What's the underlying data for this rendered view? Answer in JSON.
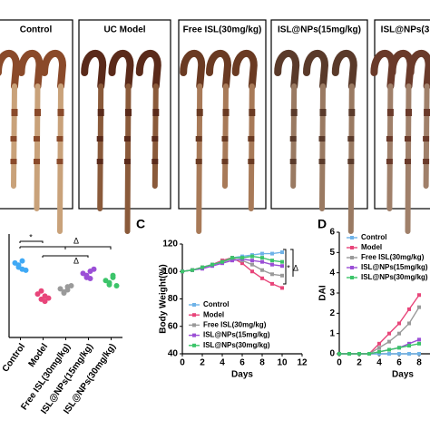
{
  "photo_labels": [
    "Control",
    "UC Model",
    "Free ISL(30mg/kg)",
    "ISL@NPs(15mg/kg)",
    "ISL@NPs(3"
  ],
  "chart_data": [
    {
      "type": "dot",
      "categories": [
        "Control",
        "Model",
        "Free ISL(30mg/kg)",
        "ISL@NPs(15mg/kg)",
        "ISL@NPs(30mg/kg)"
      ],
      "values": [
        [
          72,
          68,
          66,
          70,
          74,
          65
        ],
        [
          42,
          37,
          40,
          45,
          35,
          38
        ],
        [
          47,
          44,
          49,
          43,
          46,
          50
        ],
        [
          62,
          58,
          64,
          60,
          57,
          66
        ],
        [
          55,
          51,
          58,
          53,
          60,
          50
        ]
      ],
      "colors": [
        "#3fa9f5",
        "#e8457a",
        "#9a9a9a",
        "#9b4fd6",
        "#3cc46a"
      ],
      "ylim": [
        0,
        100
      ],
      "annotations": [
        "*",
        "Δ",
        "Δ"
      ]
    },
    {
      "type": "line",
      "panel": "C",
      "ylabel": "Body Weight(%)",
      "xlabel": "Days",
      "x": [
        0,
        1,
        2,
        3,
        4,
        5,
        6,
        7,
        8,
        9,
        10
      ],
      "xlim": [
        0,
        12
      ],
      "xticks": [
        0,
        2,
        4,
        6,
        8,
        10,
        12
      ],
      "ylim": [
        40,
        120
      ],
      "yticks": [
        40,
        60,
        80,
        100,
        120
      ],
      "series": [
        {
          "name": "Control",
          "color": "#6fb3e8",
          "values": [
            100,
            101,
            103,
            105,
            108,
            110,
            111,
            112,
            113,
            113,
            114
          ]
        },
        {
          "name": "Model",
          "color": "#e8457a",
          "values": [
            100,
            101,
            103,
            105,
            108,
            110,
            106,
            100,
            95,
            91,
            88
          ]
        },
        {
          "name": "Free ISL(30mg/kg)",
          "color": "#9a9a9a",
          "values": [
            100,
            101,
            103,
            105,
            107,
            109,
            108,
            105,
            101,
            98,
            97
          ]
        },
        {
          "name": "ISL@NPs(15mg/kg)",
          "color": "#9b4fd6",
          "values": [
            100,
            101,
            102,
            104,
            106,
            108,
            109,
            108,
            107,
            105,
            104
          ]
        },
        {
          "name": "ISL@NPs(30mg/kg)",
          "color": "#3cc46a",
          "values": [
            100,
            101,
            103,
            105,
            107,
            110,
            110,
            111,
            110,
            108,
            107
          ]
        }
      ],
      "annotations": [
        "*",
        "Δ"
      ]
    },
    {
      "type": "line",
      "panel": "D",
      "ylabel": "DAI",
      "xlabel": "Days",
      "x": [
        0,
        1,
        2,
        3,
        4,
        5,
        6,
        7,
        8
      ],
      "xlim": [
        0,
        10
      ],
      "xticks": [
        0,
        2,
        4,
        6,
        8
      ],
      "ylim": [
        0,
        6
      ],
      "yticks": [
        0,
        1,
        2,
        3,
        4,
        5,
        6
      ],
      "series": [
        {
          "name": "Control",
          "color": "#6fb3e8",
          "values": [
            0,
            0,
            0,
            0,
            0,
            0,
            0,
            0,
            0
          ]
        },
        {
          "name": "Model",
          "color": "#e8457a",
          "values": [
            0,
            0,
            0,
            0,
            0.5,
            1,
            1.5,
            2.2,
            2.9
          ]
        },
        {
          "name": "Free ISL(30mg/kg)",
          "color": "#9a9a9a",
          "values": [
            0,
            0,
            0,
            0,
            0.3,
            0.6,
            1,
            1.5,
            2.3
          ]
        },
        {
          "name": "ISL@NPs(15mg/kg)",
          "color": "#9b4fd6",
          "values": [
            0,
            0,
            0,
            0,
            0.1,
            0.2,
            0.3,
            0.5,
            0.7
          ]
        },
        {
          "name": "ISL@NPs(30mg/kg)",
          "color": "#3cc46a",
          "values": [
            0,
            0,
            0,
            0,
            0.1,
            0.2,
            0.3,
            0.4,
            0.5
          ]
        }
      ]
    }
  ]
}
